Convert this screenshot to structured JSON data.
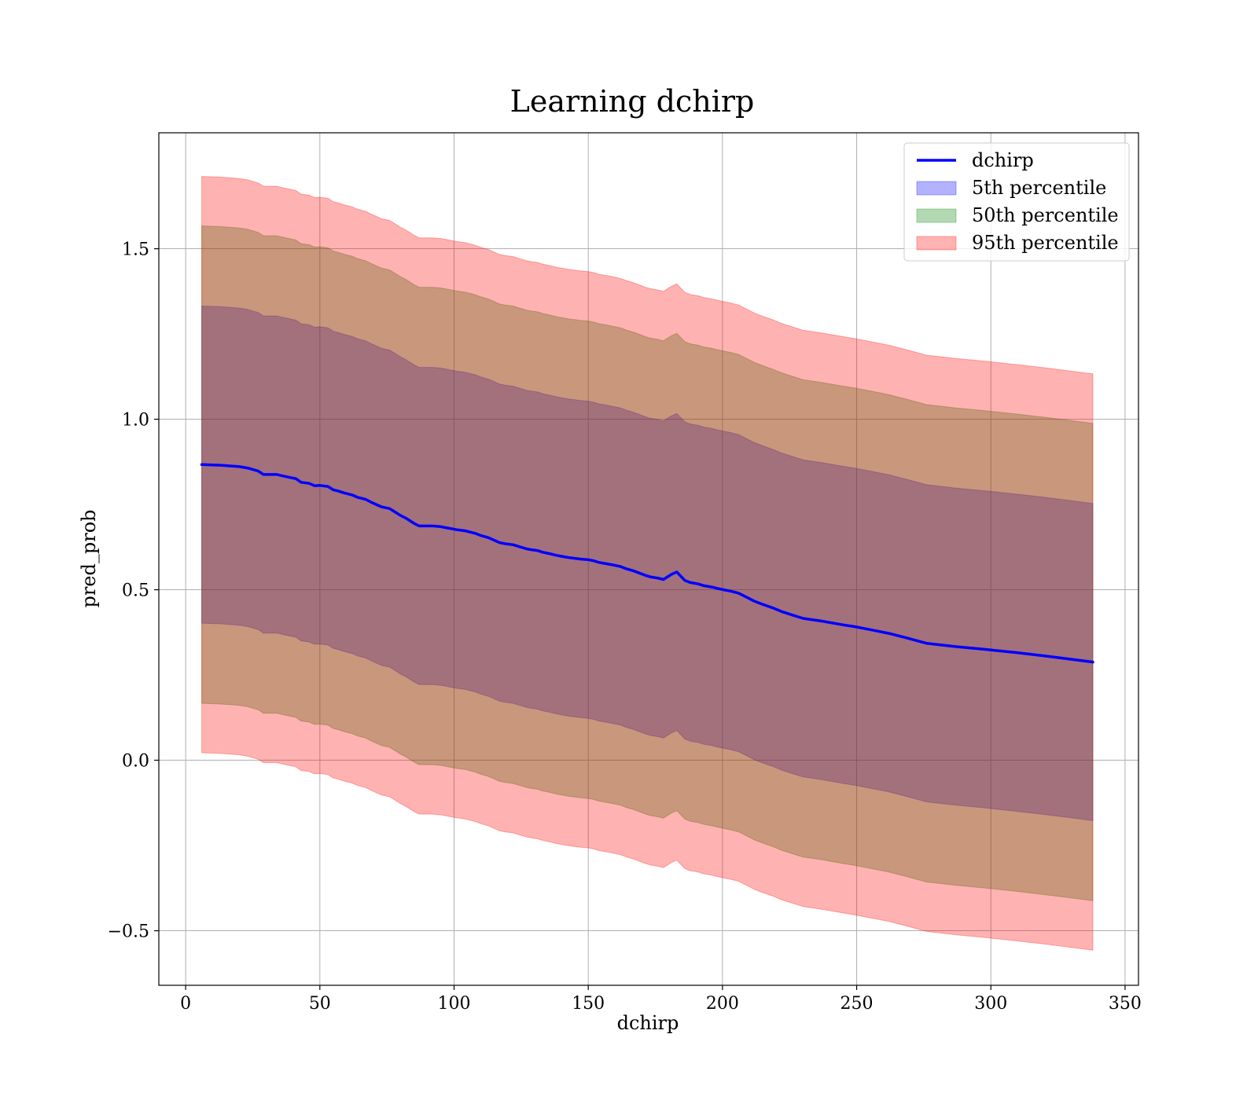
{
  "chart_data": {
    "type": "line",
    "title": "Learning dchirp",
    "xlabel": "dchirp",
    "ylabel": "pred_prob",
    "xlim": [
      -10,
      355
    ],
    "ylim": [
      -0.66,
      1.84
    ],
    "grid": true,
    "legend_position": "top-right",
    "xticks": [
      0,
      50,
      100,
      150,
      200,
      250,
      300,
      350
    ],
    "xtick_labels": [
      "0",
      "50",
      "100",
      "150",
      "200",
      "250",
      "300",
      "350"
    ],
    "yticks": [
      -0.5,
      0.0,
      0.5,
      1.0,
      1.5
    ],
    "ytick_labels": [
      "−0.5",
      "0.0",
      "0.5",
      "1.0",
      "1.5"
    ],
    "x": [
      6,
      13,
      20,
      23,
      27,
      29,
      34,
      36,
      39,
      41,
      43,
      46,
      48,
      50,
      53,
      55,
      57,
      59,
      62,
      64,
      67,
      69,
      71,
      73,
      76,
      78,
      80,
      82,
      85,
      87,
      90,
      92,
      95,
      97,
      99,
      101,
      104,
      106,
      108,
      110,
      113,
      115,
      117,
      119,
      122,
      124,
      127,
      129,
      131,
      133,
      136,
      138,
      140,
      143,
      145,
      147,
      150,
      152,
      154,
      157,
      159,
      162,
      164,
      167,
      169,
      171,
      173,
      176,
      178,
      181,
      183,
      186,
      188,
      191,
      193,
      196,
      198,
      201,
      203,
      206,
      209,
      212,
      215,
      219,
      222,
      226,
      230,
      237,
      245,
      249,
      255,
      262,
      268,
      276,
      287,
      298,
      310,
      320,
      330,
      338
    ],
    "series": [
      {
        "name": "dchirp",
        "color": "#0000ff",
        "values": [
          0.867,
          0.865,
          0.861,
          0.857,
          0.848,
          0.838,
          0.838,
          0.834,
          0.829,
          0.826,
          0.815,
          0.812,
          0.805,
          0.806,
          0.803,
          0.793,
          0.789,
          0.784,
          0.778,
          0.771,
          0.765,
          0.757,
          0.75,
          0.743,
          0.738,
          0.728,
          0.718,
          0.71,
          0.695,
          0.687,
          0.687,
          0.687,
          0.685,
          0.682,
          0.679,
          0.676,
          0.673,
          0.669,
          0.665,
          0.659,
          0.652,
          0.645,
          0.638,
          0.635,
          0.632,
          0.627,
          0.62,
          0.617,
          0.615,
          0.61,
          0.605,
          0.601,
          0.598,
          0.594,
          0.592,
          0.59,
          0.588,
          0.585,
          0.58,
          0.576,
          0.573,
          0.568,
          0.562,
          0.555,
          0.549,
          0.543,
          0.538,
          0.534,
          0.53,
          0.545,
          0.552,
          0.527,
          0.521,
          0.517,
          0.512,
          0.508,
          0.504,
          0.499,
          0.496,
          0.49,
          0.478,
          0.466,
          0.457,
          0.446,
          0.436,
          0.426,
          0.416,
          0.408,
          0.397,
          0.392,
          0.383,
          0.372,
          0.36,
          0.343,
          0.333,
          0.325,
          0.315,
          0.306,
          0.296,
          0.288
        ]
      }
    ],
    "bands": [
      {
        "name": "5th percentile",
        "color": "#0000ff",
        "opacity": 0.3,
        "half_width": 0.465
      },
      {
        "name": "50th percentile",
        "color": "#008000",
        "opacity": 0.3,
        "half_width": 0.7
      },
      {
        "name": "95th percentile",
        "color": "#ff0000",
        "opacity": 0.3,
        "half_width": 0.845
      }
    ],
    "legend": [
      "dchirp",
      "5th percentile",
      "50th percentile",
      "95th percentile"
    ]
  }
}
